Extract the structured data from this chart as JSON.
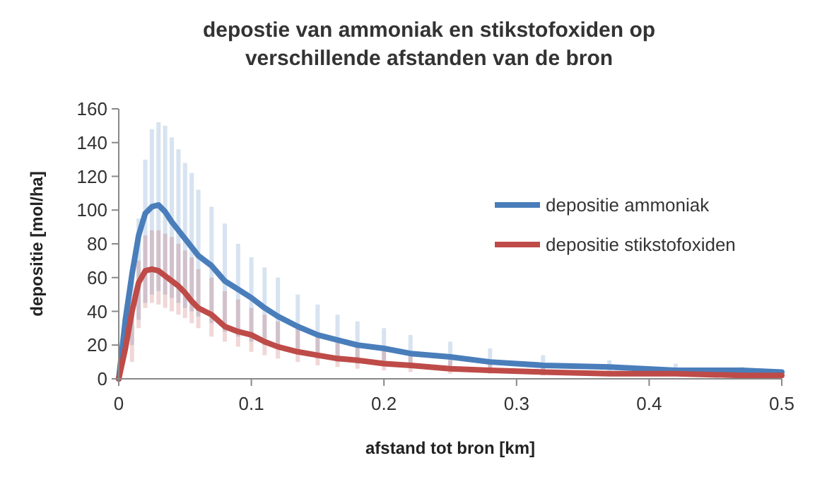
{
  "chart_data": {
    "type": "line",
    "title": "depostie van ammoniak  en stikstofoxiden op verschillende afstanden van de bron",
    "xlabel": "afstand tot bron [km]",
    "ylabel": "depositie [mol/ha]",
    "x": [
      0,
      0.005,
      0.01,
      0.015,
      0.02,
      0.025,
      0.03,
      0.035,
      0.04,
      0.045,
      0.05,
      0.055,
      0.06,
      0.07,
      0.08,
      0.09,
      0.1,
      0.11,
      0.12,
      0.135,
      0.15,
      0.165,
      0.18,
      0.2,
      0.22,
      0.25,
      0.28,
      0.32,
      0.37,
      0.42,
      0.47,
      0.5
    ],
    "series": [
      {
        "name": "depositie ammoniak",
        "color": "#4a7ebb",
        "values": [
          0,
          35,
          62,
          85,
          98,
          102,
          103,
          99,
          93,
          88,
          83,
          78,
          73,
          67,
          58,
          53,
          48,
          42,
          37,
          31,
          26,
          23,
          20,
          18,
          15,
          13,
          10,
          8,
          7,
          5,
          5,
          4
        ],
        "errors": [
          null,
          null,
          [
            20,
            65
          ],
          [
            35,
            95
          ],
          [
            45,
            130
          ],
          [
            50,
            148
          ],
          [
            52,
            152
          ],
          [
            50,
            150
          ],
          [
            48,
            143
          ],
          [
            45,
            136
          ],
          [
            42,
            128
          ],
          [
            40,
            122
          ],
          [
            37,
            112
          ],
          [
            33,
            102
          ],
          [
            28,
            92
          ],
          [
            25,
            80
          ],
          [
            22,
            72
          ],
          [
            20,
            66
          ],
          [
            18,
            60
          ],
          [
            15,
            50
          ],
          [
            12,
            44
          ],
          [
            10,
            38
          ],
          [
            9,
            34
          ],
          [
            8,
            30
          ],
          [
            7,
            26
          ],
          [
            6,
            22
          ],
          [
            5,
            18
          ],
          [
            4,
            14
          ],
          [
            3,
            11
          ],
          [
            3,
            9
          ],
          [
            2,
            7
          ],
          null
        ]
      },
      {
        "name": "depositie stikstofoxiden",
        "color": "#be4b48",
        "values": [
          0,
          18,
          40,
          57,
          64,
          65,
          64,
          61,
          58,
          55,
          51,
          46,
          42,
          38,
          31,
          28,
          26,
          22,
          19,
          16,
          14,
          12,
          11,
          9,
          8,
          6,
          5,
          4,
          3,
          3,
          2,
          2
        ],
        "errors": [
          null,
          null,
          [
            10,
            40
          ],
          [
            30,
            70
          ],
          [
            42,
            85
          ],
          [
            45,
            88
          ],
          [
            44,
            88
          ],
          [
            42,
            86
          ],
          [
            40,
            84
          ],
          [
            38,
            80
          ],
          [
            36,
            76
          ],
          [
            33,
            72
          ],
          [
            30,
            65
          ],
          [
            25,
            60
          ],
          [
            22,
            52
          ],
          [
            19,
            47
          ],
          [
            16,
            42
          ],
          [
            14,
            38
          ],
          [
            12,
            34
          ],
          [
            10,
            30
          ],
          [
            8,
            26
          ],
          [
            7,
            23
          ],
          [
            6,
            20
          ],
          [
            5,
            17
          ],
          [
            4,
            14
          ],
          [
            3,
            11
          ],
          [
            3,
            9
          ],
          [
            2,
            7
          ],
          null,
          null,
          null,
          null
        ]
      }
    ],
    "xlim": [
      0,
      0.5
    ],
    "xticks": [
      0,
      0.1,
      0.2,
      0.3,
      0.4,
      0.5
    ],
    "ylim": [
      0,
      160
    ],
    "yticks": [
      0,
      20,
      40,
      60,
      80,
      100,
      120,
      140,
      160
    ],
    "grid": false,
    "legend": "right",
    "marker": "none",
    "line_style": "solid"
  }
}
